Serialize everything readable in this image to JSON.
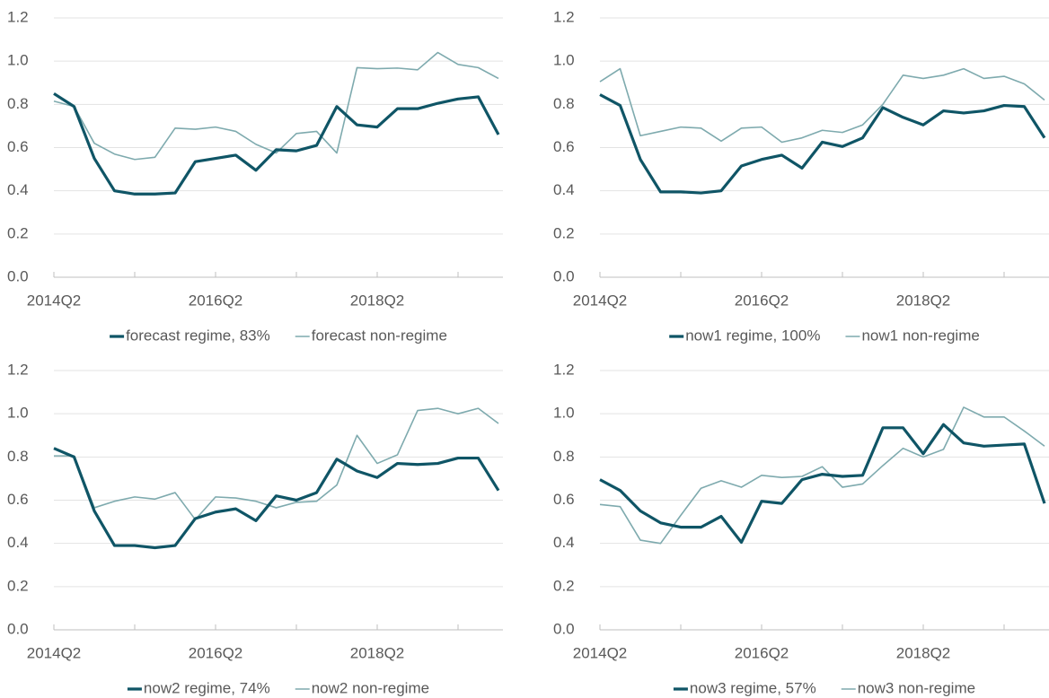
{
  "chart_data": [
    {
      "type": "line",
      "ylim": [
        0,
        1.2
      ],
      "yticks": [
        {
          "value": 0,
          "label": "0.0"
        },
        0.2,
        0.4,
        0.6,
        0.8,
        {
          "value": 1,
          "label": "1.0"
        },
        1.2
      ],
      "grid": true,
      "legend": "bottom",
      "categories": [
        "2014Q2",
        null,
        null,
        null,
        null,
        null,
        null,
        null,
        "2016Q2",
        null,
        null,
        null,
        null,
        null,
        null,
        null,
        "2018Q2",
        null,
        null,
        null,
        null,
        null,
        null
      ],
      "series": [
        {
          "name": "forecast regime, 83%",
          "color": "#0f5566",
          "values": [
            0.85,
            0.79,
            0.55,
            0.4,
            0.385,
            0.385,
            0.39,
            0.535,
            0.55,
            0.565,
            0.495,
            0.59,
            0.585,
            0.61,
            0.79,
            0.705,
            0.695,
            0.78,
            0.78,
            0.805,
            0.825,
            0.835,
            0.66
          ]
        },
        {
          "name": "forecast non-regime",
          "color": "#7eaaae",
          "values": [
            0.815,
            0.79,
            0.62,
            0.57,
            0.545,
            0.555,
            0.69,
            0.685,
            0.695,
            0.675,
            0.615,
            0.575,
            0.665,
            0.675,
            0.575,
            0.97,
            0.965,
            0.968,
            0.96,
            1.04,
            0.985,
            0.97,
            0.92
          ]
        }
      ]
    },
    {
      "type": "line",
      "ylim": [
        0,
        1.2
      ],
      "yticks": [
        {
          "value": 0,
          "label": "0.0"
        },
        0.2,
        0.4,
        0.6,
        0.8,
        {
          "value": 1,
          "label": "1.0"
        },
        1.2
      ],
      "grid": true,
      "legend": "bottom",
      "categories": [
        "2014Q2",
        null,
        null,
        null,
        null,
        null,
        null,
        null,
        "2016Q2",
        null,
        null,
        null,
        null,
        null,
        null,
        null,
        "2018Q2",
        null,
        null,
        null,
        null,
        null,
        null
      ],
      "series": [
        {
          "name": "now1 regime, 100%",
          "color": "#0f5566",
          "values": [
            0.845,
            0.795,
            0.545,
            0.395,
            0.395,
            0.39,
            0.4,
            0.515,
            0.545,
            0.565,
            0.505,
            0.625,
            0.605,
            0.645,
            0.785,
            0.74,
            0.705,
            0.77,
            0.76,
            0.77,
            0.795,
            0.79,
            0.645
          ]
        },
        {
          "name": "now1 non-regime",
          "color": "#7eaaae",
          "values": [
            0.905,
            0.965,
            0.655,
            0.675,
            0.695,
            0.69,
            0.63,
            0.69,
            0.695,
            0.625,
            0.645,
            0.68,
            0.67,
            0.705,
            0.8,
            0.935,
            0.92,
            0.935,
            0.965,
            0.92,
            0.93,
            0.895,
            0.82
          ]
        }
      ]
    },
    {
      "type": "line",
      "ylim": [
        0,
        1.2
      ],
      "yticks": [
        {
          "value": 0,
          "label": "0.0"
        },
        0.2,
        0.4,
        0.6,
        0.8,
        {
          "value": 1,
          "label": "1.0"
        },
        1.2
      ],
      "grid": true,
      "legend": "bottom",
      "categories": [
        "2014Q2",
        null,
        null,
        null,
        null,
        null,
        null,
        null,
        "2016Q2",
        null,
        null,
        null,
        null,
        null,
        null,
        null,
        "2018Q2",
        null,
        null,
        null,
        null,
        null,
        null
      ],
      "series": [
        {
          "name": "now2 regime, 74%",
          "color": "#0f5566",
          "values": [
            0.84,
            0.8,
            0.55,
            0.39,
            0.39,
            0.38,
            0.39,
            0.515,
            0.545,
            0.56,
            0.505,
            0.62,
            0.6,
            0.635,
            0.79,
            0.735,
            0.705,
            0.77,
            0.765,
            0.77,
            0.795,
            0.795,
            0.645
          ]
        },
        {
          "name": "now2 non-regime",
          "color": "#7eaaae",
          "values": [
            0.805,
            0.805,
            0.565,
            0.595,
            0.615,
            0.605,
            0.635,
            0.51,
            0.615,
            0.61,
            0.595,
            0.565,
            0.59,
            0.595,
            0.67,
            0.9,
            0.77,
            0.81,
            1.015,
            1.025,
            1.0,
            1.025,
            0.955
          ]
        }
      ]
    },
    {
      "type": "line",
      "ylim": [
        0,
        1.2
      ],
      "yticks": [
        {
          "value": 0,
          "label": "0.0"
        },
        0.2,
        0.4,
        0.6,
        0.8,
        {
          "value": 1,
          "label": "1.0"
        },
        1.2
      ],
      "grid": true,
      "legend": "bottom",
      "categories": [
        "2014Q2",
        null,
        null,
        null,
        null,
        null,
        null,
        null,
        "2016Q2",
        null,
        null,
        null,
        null,
        null,
        null,
        null,
        "2018Q2",
        null,
        null,
        null,
        null,
        null,
        null
      ],
      "series": [
        {
          "name": "now3 regime, 57%",
          "color": "#0f5566",
          "values": [
            0.695,
            0.645,
            0.55,
            0.495,
            0.475,
            0.475,
            0.525,
            0.405,
            0.595,
            0.585,
            0.695,
            0.72,
            0.71,
            0.715,
            0.935,
            0.935,
            0.815,
            0.95,
            0.865,
            0.85,
            0.855,
            0.86,
            0.585
          ]
        },
        {
          "name": "now3 non-regime",
          "color": "#7eaaae",
          "values": [
            0.58,
            0.57,
            0.415,
            0.4,
            0.53,
            0.655,
            0.69,
            0.66,
            0.715,
            0.705,
            0.71,
            0.755,
            0.66,
            0.675,
            0.76,
            0.84,
            0.8,
            0.835,
            1.03,
            0.985,
            0.985,
            0.92,
            0.85
          ]
        }
      ]
    }
  ]
}
